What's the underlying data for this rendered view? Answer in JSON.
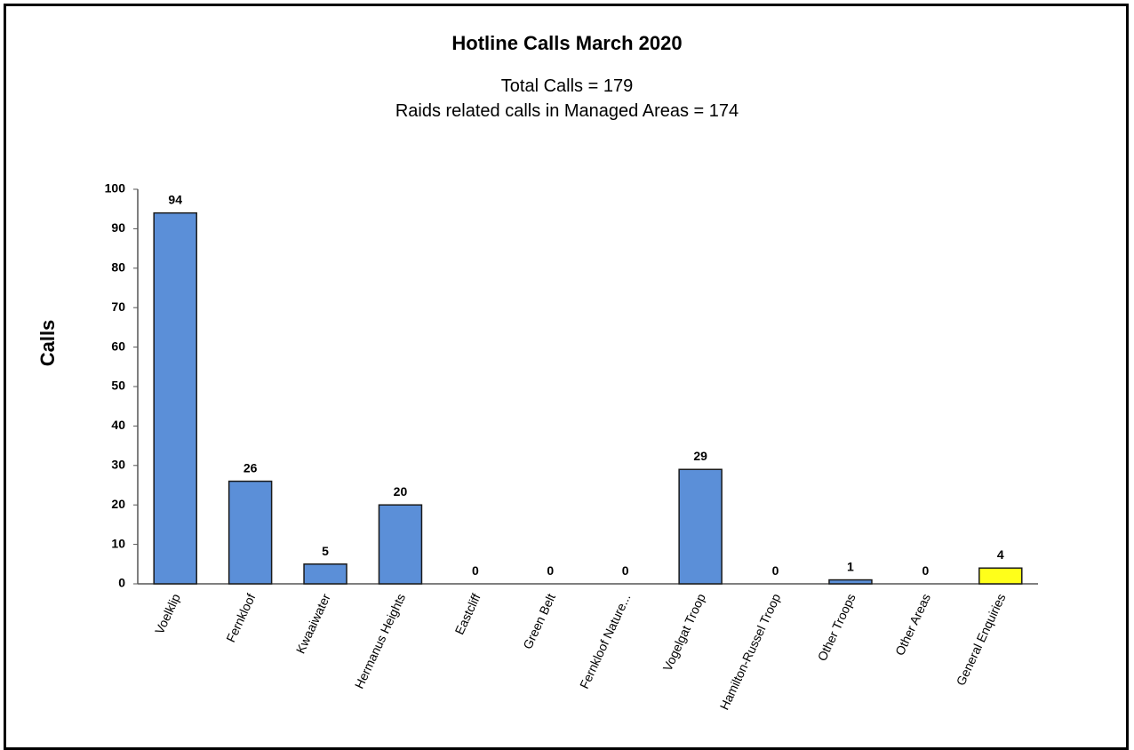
{
  "chart_data": {
    "type": "bar",
    "title": "Hotline Calls March 2020",
    "subtitle_lines": [
      "Total Calls = 179",
      "Raids related calls in Managed Areas = 174"
    ],
    "xlabel": "",
    "ylabel": "Calls",
    "ylim": [
      0,
      100
    ],
    "yticks": [
      0,
      10,
      20,
      30,
      40,
      50,
      60,
      70,
      80,
      90,
      100
    ],
    "categories": [
      "Voelklip",
      "Fernkloof",
      "Kwaaiwater",
      "Hermanus Heights",
      "Eastcliff",
      "Green Belt",
      "Fernkloof Nature...",
      "Vogelgat Troop",
      "Hamilton-Russel Troop",
      "Other Troops",
      "Other Areas",
      "General Enquiries"
    ],
    "values": [
      94,
      26,
      5,
      20,
      0,
      0,
      0,
      29,
      0,
      1,
      0,
      4
    ],
    "bar_colors": [
      "#5b8fd8",
      "#5b8fd8",
      "#5b8fd8",
      "#5b8fd8",
      "#5b8fd8",
      "#5b8fd8",
      "#5b8fd8",
      "#5b8fd8",
      "#5b8fd8",
      "#5b8fd8",
      "#5b8fd8",
      "#ffff1a"
    ],
    "grid": false,
    "legend": "none"
  }
}
